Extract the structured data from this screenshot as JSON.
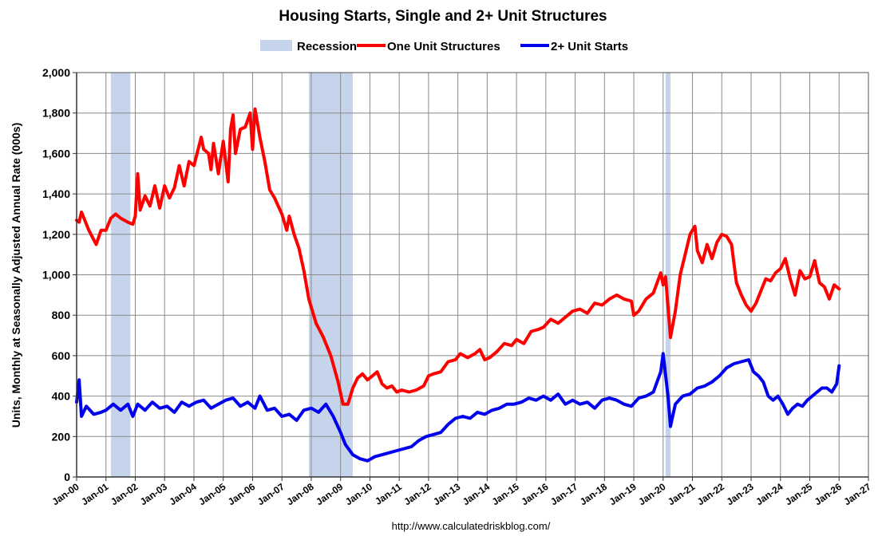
{
  "chart_data": {
    "type": "line",
    "title": "Housing Starts, Single and 2+ Unit Structures",
    "ylabel": "Units, Monthly at Seasonally Adjusted Annual Rate (000s)",
    "xlabel": "",
    "source": "http://www.calculatedriskblog.com/",
    "ylim": [
      0,
      2000
    ],
    "yticks": [
      0,
      200,
      400,
      600,
      800,
      1000,
      1200,
      1400,
      1600,
      1800,
      2000
    ],
    "ytick_labels": [
      "0",
      "200",
      "400",
      "600",
      "800",
      "1,000",
      "1,200",
      "1,400",
      "1,600",
      "1,800",
      "2,000"
    ],
    "x_range": [
      "Jan-00",
      "Jan-27"
    ],
    "x_ticks": [
      "Jan-00",
      "Jan-01",
      "Jan-02",
      "Jan-03",
      "Jan-04",
      "Jan-05",
      "Jan-06",
      "Jan-07",
      "Jan-08",
      "Jan-09",
      "Jan-10",
      "Jan-11",
      "Jan-12",
      "Jan-13",
      "Jan-14",
      "Jan-15",
      "Jan-16",
      "Jan-17",
      "Jan-18",
      "Jan-19",
      "Jan-20",
      "Jan-21",
      "Jan-22",
      "Jan-23",
      "Jan-24",
      "Jan-25",
      "Jan-26",
      "Jan-27"
    ],
    "grid": true,
    "legend_position": "top-center",
    "recession_periods": [
      {
        "start": "Mar-01",
        "end": "Nov-01"
      },
      {
        "start": "Dec-07",
        "end": "Jun-09"
      },
      {
        "start": "Feb-20",
        "end": "Apr-20"
      }
    ],
    "legend": [
      {
        "label": "Recession",
        "color": "#c5d4ea",
        "kind": "band"
      },
      {
        "label": "One Unit Structures",
        "color": "#ff0000",
        "kind": "line"
      },
      {
        "label": "2+ Unit Starts",
        "color": "#0000ee",
        "kind": "line"
      }
    ],
    "series": [
      {
        "name": "One Unit Structures",
        "color": "#ff0000",
        "points": [
          [
            "Jan-00",
            1270
          ],
          [
            "Feb-00",
            1260
          ],
          [
            "Mar-00",
            1310
          ],
          [
            "Jun-00",
            1220
          ],
          [
            "Sep-00",
            1150
          ],
          [
            "Nov-00",
            1220
          ],
          [
            "Jan-01",
            1220
          ],
          [
            "Mar-01",
            1280
          ],
          [
            "May-01",
            1300
          ],
          [
            "Jul-01",
            1280
          ],
          [
            "Oct-01",
            1260
          ],
          [
            "Dec-01",
            1250
          ],
          [
            "Jan-02",
            1290
          ],
          [
            "Feb-02",
            1500
          ],
          [
            "Mar-02",
            1320
          ],
          [
            "May-02",
            1390
          ],
          [
            "Jul-02",
            1340
          ],
          [
            "Sep-02",
            1440
          ],
          [
            "Nov-02",
            1330
          ],
          [
            "Jan-03",
            1440
          ],
          [
            "Mar-03",
            1380
          ],
          [
            "May-03",
            1430
          ],
          [
            "Jul-03",
            1540
          ],
          [
            "Sep-03",
            1440
          ],
          [
            "Nov-03",
            1560
          ],
          [
            "Jan-04",
            1540
          ],
          [
            "Apr-04",
            1680
          ],
          [
            "May-04",
            1620
          ],
          [
            "Jul-04",
            1600
          ],
          [
            "Aug-04",
            1520
          ],
          [
            "Sep-04",
            1650
          ],
          [
            "Nov-04",
            1500
          ],
          [
            "Jan-05",
            1660
          ],
          [
            "Mar-05",
            1460
          ],
          [
            "Apr-05",
            1720
          ],
          [
            "May-05",
            1790
          ],
          [
            "Jun-05",
            1600
          ],
          [
            "Aug-05",
            1720
          ],
          [
            "Oct-05",
            1730
          ],
          [
            "Dec-05",
            1800
          ],
          [
            "Jan-06",
            1620
          ],
          [
            "Feb-06",
            1820
          ],
          [
            "Apr-06",
            1680
          ],
          [
            "Jun-06",
            1560
          ],
          [
            "Aug-06",
            1420
          ],
          [
            "Oct-06",
            1380
          ],
          [
            "Jan-07",
            1300
          ],
          [
            "Mar-07",
            1220
          ],
          [
            "Apr-07",
            1290
          ],
          [
            "Jun-07",
            1200
          ],
          [
            "Aug-07",
            1130
          ],
          [
            "Oct-07",
            1020
          ],
          [
            "Dec-07",
            880
          ],
          [
            "Mar-08",
            760
          ],
          [
            "Jun-08",
            690
          ],
          [
            "Sep-08",
            600
          ],
          [
            "Dec-08",
            470
          ],
          [
            "Feb-09",
            360
          ],
          [
            "Apr-09",
            360
          ],
          [
            "Jun-09",
            440
          ],
          [
            "Aug-09",
            490
          ],
          [
            "Oct-09",
            510
          ],
          [
            "Dec-09",
            480
          ],
          [
            "Feb-10",
            500
          ],
          [
            "Apr-10",
            520
          ],
          [
            "Jun-10",
            460
          ],
          [
            "Aug-10",
            440
          ],
          [
            "Oct-10",
            450
          ],
          [
            "Dec-10",
            420
          ],
          [
            "Feb-11",
            430
          ],
          [
            "May-11",
            420
          ],
          [
            "Aug-11",
            430
          ],
          [
            "Nov-11",
            450
          ],
          [
            "Jan-12",
            500
          ],
          [
            "Mar-12",
            510
          ],
          [
            "Jun-12",
            520
          ],
          [
            "Sep-12",
            570
          ],
          [
            "Dec-12",
            580
          ],
          [
            "Feb-13",
            610
          ],
          [
            "May-13",
            590
          ],
          [
            "Aug-13",
            610
          ],
          [
            "Oct-13",
            630
          ],
          [
            "Dec-13",
            580
          ],
          [
            "Feb-14",
            590
          ],
          [
            "May-14",
            620
          ],
          [
            "Aug-14",
            660
          ],
          [
            "Nov-14",
            650
          ],
          [
            "Jan-15",
            680
          ],
          [
            "Apr-15",
            660
          ],
          [
            "Jul-15",
            720
          ],
          [
            "Oct-15",
            730
          ],
          [
            "Dec-15",
            740
          ],
          [
            "Mar-16",
            780
          ],
          [
            "Jun-16",
            760
          ],
          [
            "Sep-16",
            790
          ],
          [
            "Dec-16",
            820
          ],
          [
            "Mar-17",
            830
          ],
          [
            "Jun-17",
            810
          ],
          [
            "Sep-17",
            860
          ],
          [
            "Dec-17",
            850
          ],
          [
            "Mar-18",
            880
          ],
          [
            "Jun-18",
            900
          ],
          [
            "Sep-18",
            880
          ],
          [
            "Dec-18",
            870
          ],
          [
            "Jan-19",
            800
          ],
          [
            "Mar-19",
            820
          ],
          [
            "Jun-19",
            880
          ],
          [
            "Sep-19",
            910
          ],
          [
            "Dec-19",
            1010
          ],
          [
            "Jan-20",
            950
          ],
          [
            "Feb-20",
            990
          ],
          [
            "Apr-20",
            690
          ],
          [
            "Jun-20",
            820
          ],
          [
            "Aug-20",
            1000
          ],
          [
            "Oct-20",
            1100
          ],
          [
            "Dec-20",
            1200
          ],
          [
            "Feb-21",
            1240
          ],
          [
            "Mar-21",
            1120
          ],
          [
            "May-21",
            1060
          ],
          [
            "Jul-21",
            1150
          ],
          [
            "Sep-21",
            1080
          ],
          [
            "Nov-21",
            1160
          ],
          [
            "Jan-22",
            1200
          ],
          [
            "Mar-22",
            1190
          ],
          [
            "May-22",
            1150
          ],
          [
            "Jul-22",
            960
          ],
          [
            "Sep-22",
            900
          ],
          [
            "Nov-22",
            850
          ],
          [
            "Jan-23",
            820
          ],
          [
            "Mar-23",
            860
          ],
          [
            "May-23",
            920
          ],
          [
            "Jul-23",
            980
          ],
          [
            "Sep-23",
            970
          ],
          [
            "Nov-23",
            1010
          ],
          [
            "Jan-24",
            1030
          ],
          [
            "Mar-24",
            1080
          ],
          [
            "May-24",
            980
          ],
          [
            "Jul-24",
            900
          ],
          [
            "Sep-24",
            1020
          ],
          [
            "Nov-24",
            980
          ],
          [
            "Jan-25",
            990
          ],
          [
            "Mar-25",
            1070
          ],
          [
            "May-25",
            960
          ],
          [
            "Jul-25",
            940
          ],
          [
            "Sep-25",
            880
          ],
          [
            "Nov-25",
            950
          ],
          [
            "Jan-26",
            930
          ]
        ]
      },
      {
        "name": "2+ Unit Starts",
        "color": "#0000ee",
        "points": [
          [
            "Jan-00",
            370
          ],
          [
            "Feb-00",
            480
          ],
          [
            "Mar-00",
            300
          ],
          [
            "May-00",
            350
          ],
          [
            "Aug-00",
            310
          ],
          [
            "Nov-00",
            320
          ],
          [
            "Jan-01",
            330
          ],
          [
            "Apr-01",
            360
          ],
          [
            "Jul-01",
            330
          ],
          [
            "Oct-01",
            360
          ],
          [
            "Dec-01",
            300
          ],
          [
            "Feb-02",
            360
          ],
          [
            "May-02",
            330
          ],
          [
            "Aug-02",
            370
          ],
          [
            "Nov-02",
            340
          ],
          [
            "Feb-03",
            350
          ],
          [
            "May-03",
            320
          ],
          [
            "Aug-03",
            370
          ],
          [
            "Nov-03",
            350
          ],
          [
            "Feb-04",
            370
          ],
          [
            "May-04",
            380
          ],
          [
            "Aug-04",
            340
          ],
          [
            "Nov-04",
            360
          ],
          [
            "Feb-05",
            380
          ],
          [
            "May-05",
            390
          ],
          [
            "Aug-05",
            350
          ],
          [
            "Nov-05",
            370
          ],
          [
            "Feb-06",
            340
          ],
          [
            "Apr-06",
            400
          ],
          [
            "Jul-06",
            330
          ],
          [
            "Oct-06",
            340
          ],
          [
            "Jan-07",
            300
          ],
          [
            "Apr-07",
            310
          ],
          [
            "Jul-07",
            280
          ],
          [
            "Oct-07",
            330
          ],
          [
            "Jan-08",
            340
          ],
          [
            "Apr-08",
            320
          ],
          [
            "Jul-08",
            360
          ],
          [
            "Oct-08",
            300
          ],
          [
            "Jan-09",
            220
          ],
          [
            "Mar-09",
            160
          ],
          [
            "Jun-09",
            110
          ],
          [
            "Sep-09",
            90
          ],
          [
            "Dec-09",
            80
          ],
          [
            "Mar-10",
            100
          ],
          [
            "Jun-10",
            110
          ],
          [
            "Sep-10",
            120
          ],
          [
            "Dec-10",
            130
          ],
          [
            "Mar-11",
            140
          ],
          [
            "Jun-11",
            150
          ],
          [
            "Sep-11",
            180
          ],
          [
            "Dec-11",
            200
          ],
          [
            "Mar-12",
            210
          ],
          [
            "Jun-12",
            220
          ],
          [
            "Sep-12",
            260
          ],
          [
            "Dec-12",
            290
          ],
          [
            "Mar-13",
            300
          ],
          [
            "Jun-13",
            290
          ],
          [
            "Sep-13",
            320
          ],
          [
            "Dec-13",
            310
          ],
          [
            "Mar-14",
            330
          ],
          [
            "Jun-14",
            340
          ],
          [
            "Sep-14",
            360
          ],
          [
            "Dec-14",
            360
          ],
          [
            "Mar-15",
            370
          ],
          [
            "Jun-15",
            390
          ],
          [
            "Sep-15",
            380
          ],
          [
            "Dec-15",
            400
          ],
          [
            "Mar-16",
            380
          ],
          [
            "Jun-16",
            410
          ],
          [
            "Sep-16",
            360
          ],
          [
            "Dec-16",
            380
          ],
          [
            "Mar-17",
            360
          ],
          [
            "Jun-17",
            370
          ],
          [
            "Sep-17",
            340
          ],
          [
            "Dec-17",
            380
          ],
          [
            "Mar-18",
            390
          ],
          [
            "Jun-18",
            380
          ],
          [
            "Sep-18",
            360
          ],
          [
            "Dec-18",
            350
          ],
          [
            "Mar-19",
            390
          ],
          [
            "Jun-19",
            400
          ],
          [
            "Sep-19",
            420
          ],
          [
            "Dec-19",
            520
          ],
          [
            "Jan-20",
            610
          ],
          [
            "Mar-20",
            400
          ],
          [
            "Apr-20",
            250
          ],
          [
            "Jun-20",
            360
          ],
          [
            "Sep-20",
            400
          ],
          [
            "Dec-20",
            410
          ],
          [
            "Mar-21",
            440
          ],
          [
            "Jun-21",
            450
          ],
          [
            "Sep-21",
            470
          ],
          [
            "Dec-21",
            500
          ],
          [
            "Mar-22",
            540
          ],
          [
            "Jun-22",
            560
          ],
          [
            "Sep-22",
            570
          ],
          [
            "Dec-22",
            580
          ],
          [
            "Feb-23",
            520
          ],
          [
            "Apr-23",
            500
          ],
          [
            "Jun-23",
            470
          ],
          [
            "Aug-23",
            400
          ],
          [
            "Oct-23",
            380
          ],
          [
            "Dec-23",
            400
          ],
          [
            "Feb-24",
            360
          ],
          [
            "Apr-24",
            310
          ],
          [
            "Jun-24",
            340
          ],
          [
            "Aug-24",
            360
          ],
          [
            "Oct-24",
            350
          ],
          [
            "Dec-24",
            380
          ],
          [
            "Feb-25",
            400
          ],
          [
            "Apr-25",
            420
          ],
          [
            "Jun-25",
            440
          ],
          [
            "Aug-25",
            440
          ],
          [
            "Oct-25",
            420
          ],
          [
            "Dec-25",
            460
          ],
          [
            "Jan-26",
            550
          ]
        ]
      }
    ]
  }
}
